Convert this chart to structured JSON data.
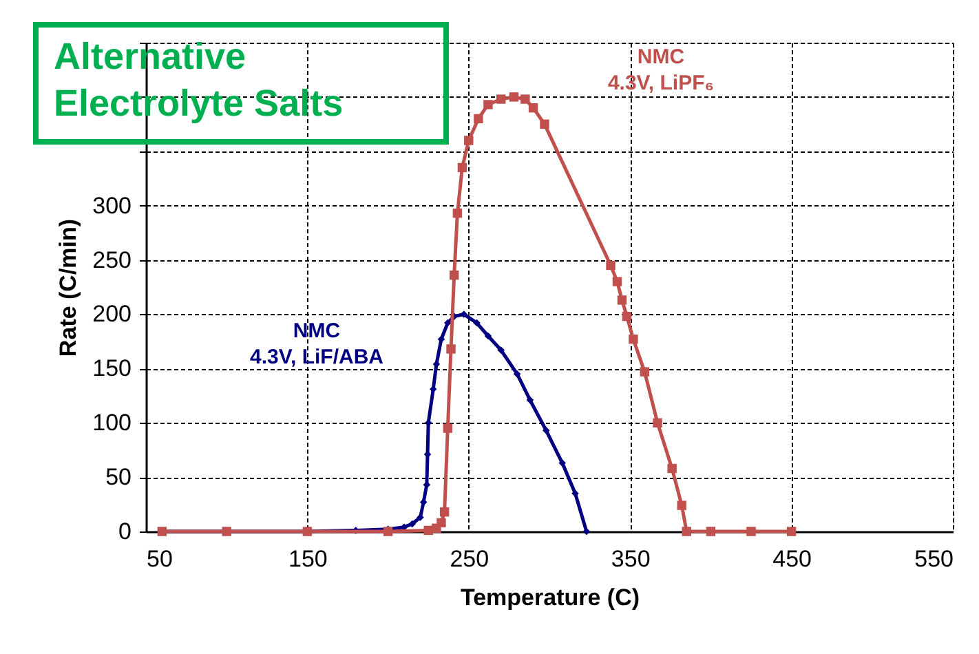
{
  "chart_data": {
    "type": "line",
    "xlabel": "Temperature (C)",
    "ylabel": "Rate (C/min)",
    "annotations": [
      "Alternative Electrolyte Salts"
    ],
    "xlim": [
      50,
      550
    ],
    "xticks": [
      50,
      150,
      250,
      350,
      450,
      550
    ],
    "ylim": [
      0,
      450
    ],
    "yticks": [
      0,
      50,
      100,
      150,
      200,
      250,
      300,
      {
        "value": 350,
        "label": null
      },
      {
        "value": 400,
        "label": null
      },
      {
        "value": 450,
        "label": null
      }
    ],
    "grid": true,
    "series": [
      {
        "name": "NMC 4.3V, LiF/ABA",
        "color": "#000080",
        "marker": "diamond",
        "x": [
          60,
          150,
          180,
          200,
          210,
          215,
          220,
          222,
          224,
          224.5,
          225,
          228,
          230,
          233,
          237,
          241,
          247,
          255,
          262,
          270,
          280,
          288,
          298,
          308,
          316,
          323
        ],
        "values": [
          0,
          0,
          1,
          2,
          4,
          7,
          13,
          27,
          43,
          71,
          100,
          131,
          154,
          177,
          192,
          198,
          200,
          192,
          180,
          167,
          145,
          121,
          93,
          63,
          35,
          0
        ]
      },
      {
        "name": "NMC 4.3V, LiPF₆",
        "color": "#c0504d",
        "marker": "square",
        "x": [
          60,
          100,
          150,
          200,
          225,
          230,
          233,
          235,
          237,
          239,
          241,
          243,
          246,
          250,
          256,
          262,
          270,
          278,
          285,
          290,
          297,
          338,
          342,
          345,
          348,
          352,
          359,
          367,
          376,
          382,
          385,
          400,
          425,
          450
        ],
        "values": [
          0,
          0,
          0,
          0,
          1,
          3,
          8,
          18,
          95,
          168,
          236,
          293,
          335,
          360,
          380,
          393,
          398,
          400,
          398,
          390,
          375,
          245,
          230,
          213,
          198,
          177,
          147,
          100,
          58,
          24,
          0,
          0,
          0,
          0
        ]
      }
    ]
  }
}
